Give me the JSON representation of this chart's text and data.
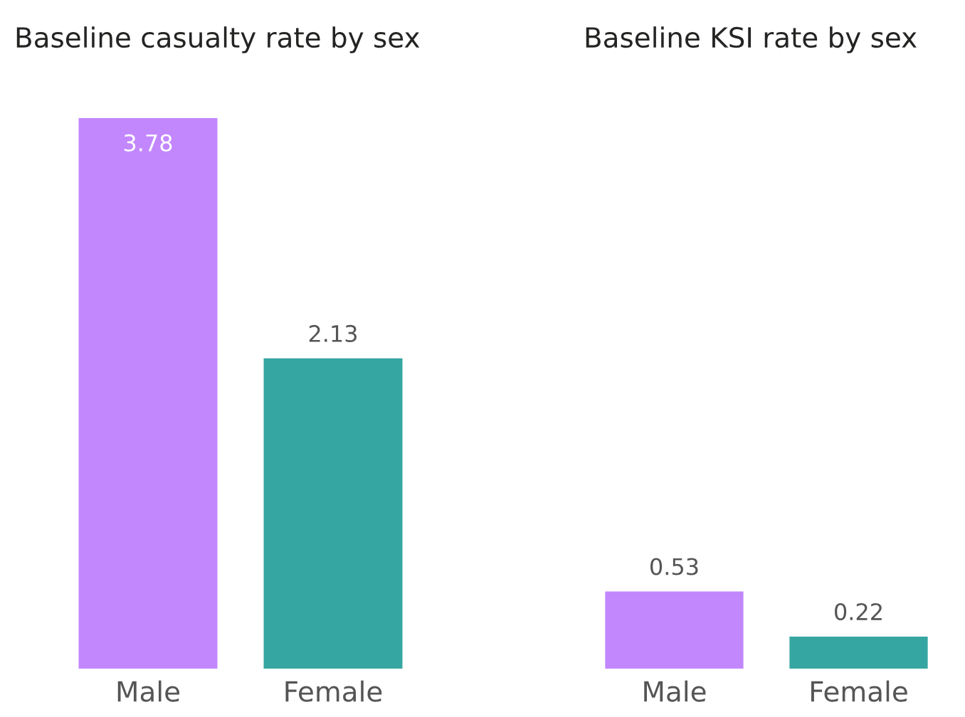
{
  "chart_data": [
    {
      "type": "bar",
      "title": "Baseline casualty rate by sex",
      "categories": [
        "Male",
        "Female"
      ],
      "values": [
        3.78,
        2.13
      ],
      "colors": [
        "#c387fd",
        "#36a6a2"
      ],
      "data_labels": true,
      "tick_labels": "x",
      "grid": false,
      "legend": false
    },
    {
      "type": "bar",
      "title": "Baseline KSI rate by sex",
      "categories": [
        "Male",
        "Female"
      ],
      "values": [
        0.53,
        0.22
      ],
      "colors": [
        "#c387fd",
        "#36a6a2"
      ],
      "data_labels": true,
      "tick_labels": "x",
      "grid": false,
      "legend": false
    }
  ]
}
